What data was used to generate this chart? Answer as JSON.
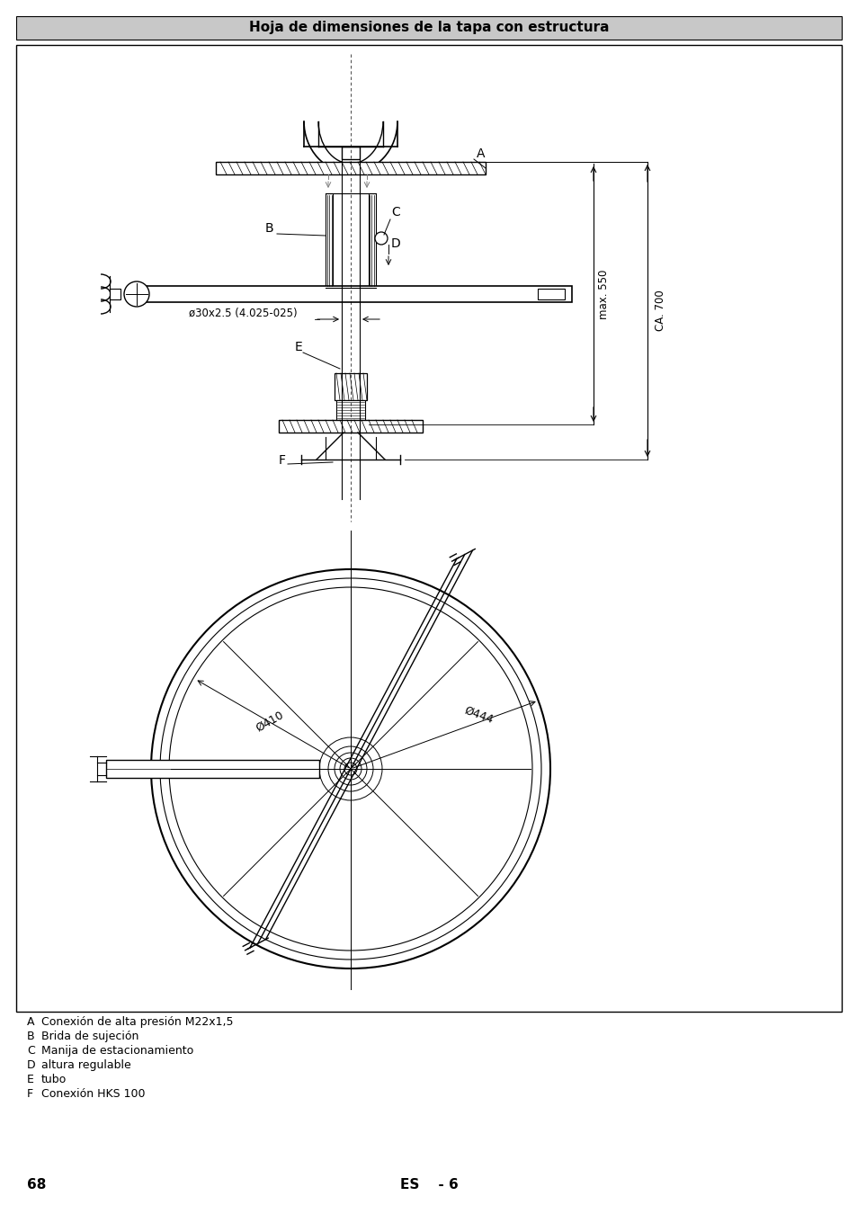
{
  "title": "Hoja de dimensiones de la tapa con estructura",
  "title_bg": "#c8c8c8",
  "page_num": "68",
  "page_es": "ES    - 6",
  "legend": [
    [
      "A",
      "Conexión de alta presión M22x1,5"
    ],
    [
      "B",
      "Brida de sujeción"
    ],
    [
      "C",
      "Manija de estacionamiento"
    ],
    [
      "D",
      "altura regulable"
    ],
    [
      "E",
      "tubo"
    ],
    [
      "F",
      "Conexión HKS 100"
    ]
  ],
  "dim_label_ca700": "CA. 700",
  "dim_label_max550": "max. 550",
  "dim_label_phi410": "Ø410",
  "dim_label_phi444": "Ø444",
  "dim_label_phi30": "ø30x2.5 (4.025-025)",
  "label_A": "A",
  "label_B": "B",
  "label_C": "C",
  "label_D": "D",
  "label_E": "E",
  "label_F": "F",
  "line_color": "#000000",
  "bg_color": "#ffffff"
}
